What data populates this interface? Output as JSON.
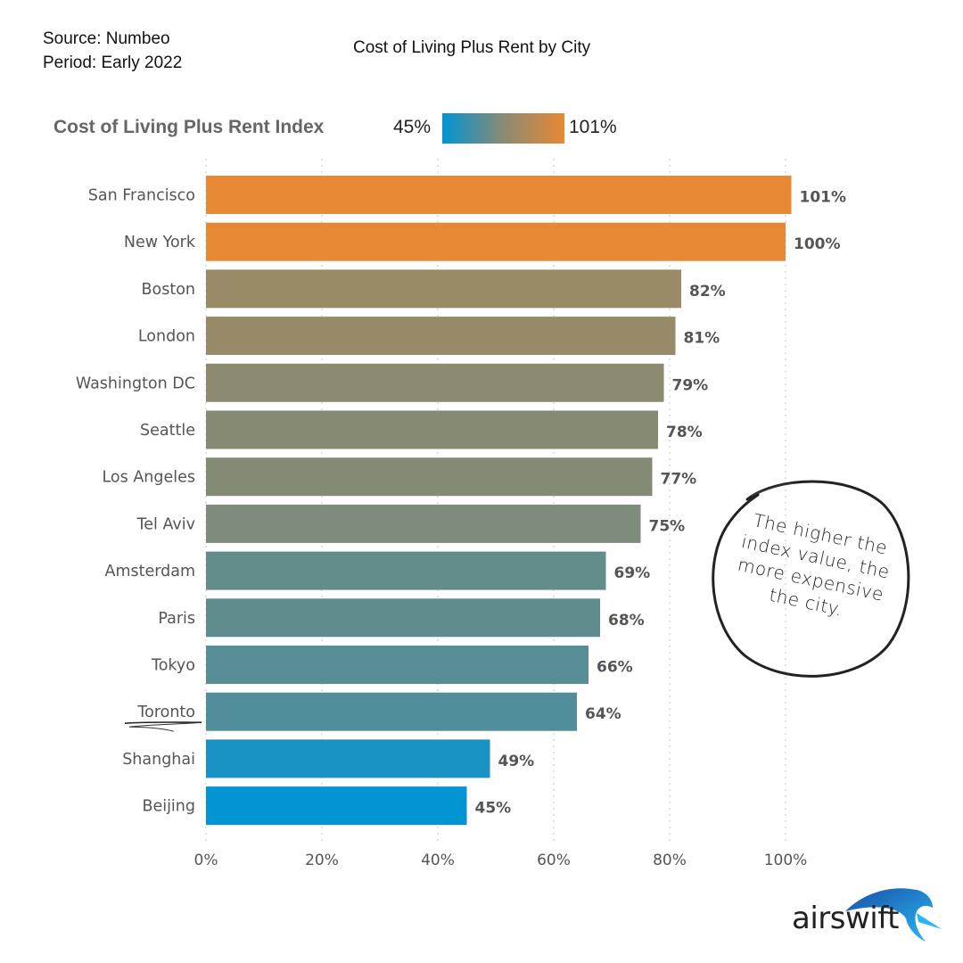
{
  "header": {
    "source": "Source: Numbeo",
    "period": "Period: Early 2022",
    "title": "Cost of Living Plus Rent by City"
  },
  "legend": {
    "title": "Cost of Living Plus Rent Index",
    "min_label": "45%",
    "max_label": "101%",
    "min_color": "#0094d4",
    "mid_color": "#8a8b74",
    "max_color": "#e98832"
  },
  "annotation": {
    "text": "The higher the index value, the more expensive the city."
  },
  "logo": {
    "text": "airswift"
  },
  "chart_data": {
    "type": "bar",
    "orientation": "horizontal",
    "title": "Cost of Living Plus Rent by City",
    "xlabel": "",
    "ylabel": "",
    "xlim": [
      0,
      100
    ],
    "x_ticks": [
      "0%",
      "20%",
      "40%",
      "60%",
      "80%",
      "100%"
    ],
    "grid": true,
    "categories": [
      "San Francisco",
      "New York",
      "Boston",
      "London",
      "Washington DC",
      "Seattle",
      "Los Angeles",
      "Tel Aviv",
      "Amsterdam",
      "Paris",
      "Tokyo",
      "Toronto",
      "Shanghai",
      "Beijing"
    ],
    "values": [
      101,
      100,
      82,
      81,
      79,
      78,
      77,
      75,
      69,
      68,
      66,
      64,
      49,
      45
    ],
    "value_labels": [
      "101%",
      "100%",
      "82%",
      "81%",
      "79%",
      "78%",
      "77%",
      "75%",
      "69%",
      "68%",
      "66%",
      "64%",
      "49%",
      "45%"
    ],
    "colors": [
      "#e78834",
      "#e78834",
      "#9a8b68",
      "#978a68",
      "#8c8a6f",
      "#878a72",
      "#838b75",
      "#7e8d7b",
      "#638d89",
      "#5f8d8d",
      "#578e95",
      "#518e9a",
      "#1a91c4",
      "#0294d3"
    ],
    "highlighted": "Toronto"
  }
}
